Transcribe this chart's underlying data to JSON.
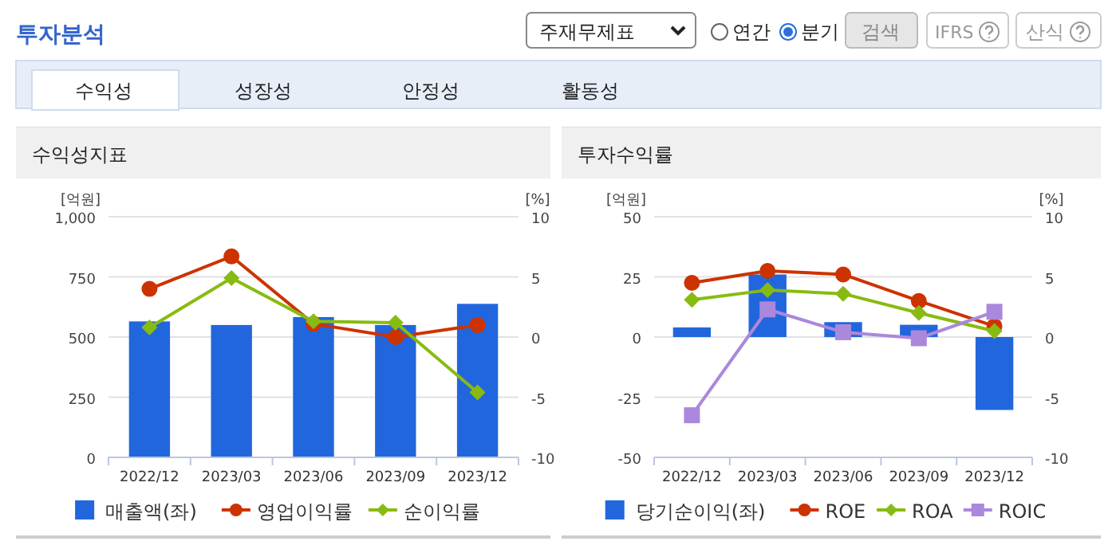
{
  "chart_data": [
    {
      "type": "other",
      "title": "투자분석",
      "annotations": [
        "주재무제표",
        "연간",
        "분기",
        "검색",
        "IFRS",
        "산식",
        "수익성",
        "성장성",
        "안정성",
        "활동성"
      ]
    },
    {
      "type": "bar",
      "title": "수익성지표",
      "ylabel": "[억원]",
      "y2label": "[%]",
      "categories": [
        "2022/12",
        "2023/03",
        "2023/06",
        "2023/09",
        "2023/12"
      ],
      "ylim": [
        0,
        1000
      ],
      "yticks": [
        0,
        250,
        500,
        750,
        {
          "value": 1000,
          "label": "1,000"
        }
      ],
      "y2lim": [
        -10,
        10
      ],
      "y2ticks": [
        -10,
        -5,
        0,
        5,
        10
      ],
      "grid": "y",
      "legend": "bottom",
      "series": [
        {
          "name": "매출액(좌)",
          "type": "bar",
          "color": "#2266dd",
          "values": [
            565,
            550,
            583,
            550,
            638
          ]
        },
        {
          "name": "영업이익률",
          "type": "line",
          "axis": "y2",
          "marker": "circle",
          "color": "#cc3300",
          "values": [
            4.0,
            6.7,
            1.1,
            0.0,
            1.0
          ]
        },
        {
          "name": "순이익률",
          "type": "line",
          "axis": "y2",
          "marker": "diamond",
          "color": "#88bb11",
          "values": [
            0.8,
            4.9,
            1.3,
            1.2,
            -4.6
          ]
        }
      ]
    },
    {
      "type": "bar",
      "title": "투자수익률",
      "ylabel": "[억원]",
      "y2label": "[%]",
      "categories": [
        "2022/12",
        "2023/03",
        "2023/06",
        "2023/09",
        "2023/12"
      ],
      "ylim": [
        -50,
        50
      ],
      "yticks": [
        -50,
        -25,
        0,
        25,
        50
      ],
      "y2lim": [
        -10,
        10
      ],
      "y2ticks": [
        -10,
        -5,
        0,
        5,
        10
      ],
      "grid": "y",
      "legend": "bottom",
      "series": [
        {
          "name": "당기순이익(좌)",
          "type": "bar",
          "color": "#2266dd",
          "values": [
            4.0,
            26,
            6.2,
            5.1,
            -30.3
          ]
        },
        {
          "name": "ROE",
          "type": "line",
          "axis": "y2",
          "marker": "circle",
          "color": "#cc3300",
          "values": [
            4.5,
            5.5,
            5.2,
            3.0,
            0.9
          ]
        },
        {
          "name": "ROA",
          "type": "line",
          "axis": "y2",
          "marker": "diamond",
          "color": "#88bb11",
          "values": [
            3.1,
            3.9,
            3.6,
            2.0,
            0.5
          ]
        },
        {
          "name": "ROIC",
          "type": "line",
          "axis": "y2",
          "marker": "square",
          "color": "#aa88dd",
          "values": [
            -6.5,
            2.3,
            0.4,
            -0.1,
            2.1
          ]
        }
      ]
    }
  ]
}
